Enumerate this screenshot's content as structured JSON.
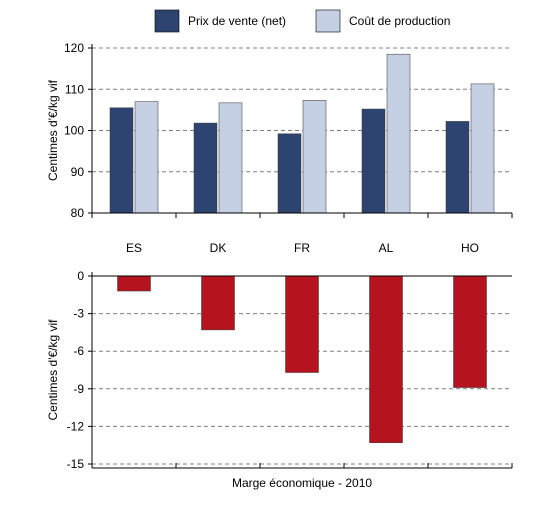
{
  "chart_data": [
    {
      "type": "bar",
      "categories": [
        "ES",
        "DK",
        "FR",
        "AL",
        "HO"
      ],
      "series": [
        {
          "name": "Prix de vente (net)",
          "values": [
            105.5,
            101.8,
            99.2,
            105.2,
            102.2
          ],
          "color": "#2e4470"
        },
        {
          "name": "Coût de production",
          "values": [
            107.0,
            106.7,
            107.3,
            118.5,
            111.3
          ],
          "color": "#c5d0e4"
        }
      ],
      "ylabel": "Centimes  d'€/kg vif",
      "ylim": [
        80,
        120
      ],
      "yticks": [
        80,
        90,
        100,
        110,
        120
      ],
      "grid": true,
      "legend": "top"
    },
    {
      "type": "bar",
      "categories": [
        "ES",
        "DK",
        "FR",
        "AL",
        "HO"
      ],
      "series": [
        {
          "values": [
            -1.2,
            -4.3,
            -7.7,
            -13.3,
            -8.9
          ],
          "color": "#b5141e"
        }
      ],
      "ylabel": "Centimes  d'€/kg vif",
      "xlabel": "Marge économique - 2010",
      "ylim": [
        -15,
        0
      ],
      "yticks": [
        0,
        -3,
        -6,
        -9,
        -12,
        -15
      ],
      "grid": true
    }
  ]
}
